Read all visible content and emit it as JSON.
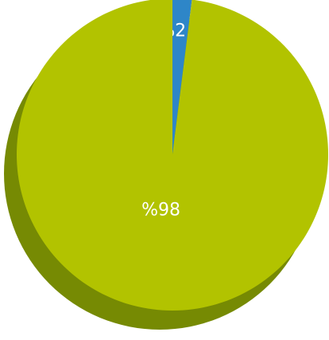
{
  "chart_data": {
    "type": "pie",
    "values": [
      2,
      98
    ],
    "value_labels": [
      "%2",
      "%98"
    ],
    "colors": [
      "#2e86c8",
      "#b2c300"
    ],
    "shadow_color": "#768a03"
  }
}
